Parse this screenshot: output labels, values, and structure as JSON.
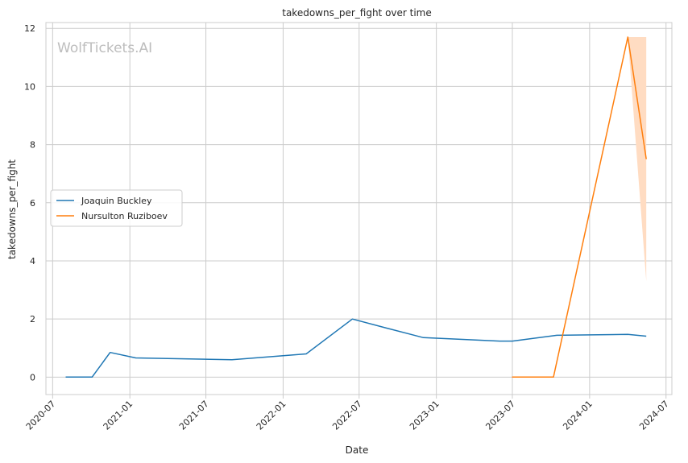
{
  "chart_data": {
    "type": "line",
    "title": "takedowns_per_fight over time",
    "xlabel": "Date",
    "ylabel": "takedowns_per_fight",
    "watermark": "WolfTickets.AI",
    "x_ticks": [
      "2020-07",
      "2021-01",
      "2021-07",
      "2022-01",
      "2022-07",
      "2023-01",
      "2023-07",
      "2024-01",
      "2024-07"
    ],
    "y_ticks": [
      "0",
      "2",
      "4",
      "6",
      "8",
      "10",
      "12"
    ],
    "xlim": [
      "2020-06-15",
      "2024-07-15"
    ],
    "ylim": [
      -0.6,
      12.2
    ],
    "grid": true,
    "legend_position": "center-left",
    "series": [
      {
        "name": "Joaquin Buckley",
        "color": "#1f77b4",
        "x": [
          "2020-08-01",
          "2020-10-03",
          "2020-11-15",
          "2021-01-15",
          "2021-09-01",
          "2022-02-25",
          "2022-06-15",
          "2022-09-01",
          "2022-12-01",
          "2023-06-01",
          "2023-07-01",
          "2023-10-15",
          "2024-04-01",
          "2024-05-15"
        ],
        "y": [
          0.0,
          0.0,
          0.85,
          0.66,
          0.6,
          0.8,
          2.0,
          1.7,
          1.36,
          1.24,
          1.24,
          1.44,
          1.47,
          1.41
        ]
      },
      {
        "name": "Nursulton Ruziboev",
        "color": "#ff7f0e",
        "x": [
          "2023-06-30",
          "2023-10-07",
          "2024-04-01",
          "2024-05-15"
        ],
        "y": [
          0.0,
          0.0,
          11.7,
          7.5
        ],
        "band": {
          "x": [
            "2024-04-01",
            "2024-05-15"
          ],
          "lower": [
            11.7,
            3.3
          ],
          "upper": [
            11.7,
            11.7
          ],
          "color": "#ffdcc2"
        }
      }
    ]
  }
}
